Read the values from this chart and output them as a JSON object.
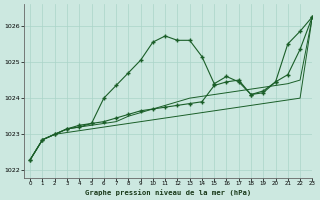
{
  "background_color": "#cce8e0",
  "grid_color": "#aad4c8",
  "line_color": "#1a5e28",
  "marker_color": "#1a5e28",
  "title": "Graphe pression niveau de la mer (hPa)",
  "xlim": [
    -0.5,
    23
  ],
  "ylim": [
    1021.8,
    1026.6
  ],
  "yticks": [
    1022,
    1023,
    1024,
    1025,
    1026
  ],
  "xticks": [
    0,
    1,
    2,
    3,
    4,
    5,
    6,
    7,
    8,
    9,
    10,
    11,
    12,
    13,
    14,
    15,
    16,
    17,
    18,
    19,
    20,
    21,
    22,
    23
  ],
  "s1": [
    1022.3,
    1022.85,
    1023.0,
    1023.15,
    1023.2,
    1023.3,
    1024.0,
    1024.35,
    1024.7,
    1025.05,
    1025.55,
    1025.72,
    1025.6,
    1025.6,
    1025.15,
    1024.4,
    1024.6,
    1024.45,
    1024.1,
    1024.15,
    1024.45,
    1025.5,
    1025.85,
    1026.25
  ],
  "s2": [
    1022.3,
    1022.85,
    1023.0,
    1023.15,
    1023.25,
    1023.3,
    1023.35,
    1023.45,
    1023.55,
    1023.65,
    1023.7,
    1023.75,
    1023.8,
    1023.85,
    1023.9,
    1024.35,
    1024.45,
    1024.5,
    1024.1,
    1024.2,
    1024.45,
    1024.65,
    1025.35,
    1026.25
  ],
  "s3": [
    1022.3,
    1022.85,
    1023.0,
    1023.15,
    1023.2,
    1023.25,
    1023.3,
    1023.35,
    1023.5,
    1023.6,
    1023.7,
    1023.8,
    1023.9,
    1024.0,
    1024.05,
    1024.1,
    1024.15,
    1024.2,
    1024.25,
    1024.3,
    1024.35,
    1024.4,
    1024.5,
    1026.25
  ],
  "s4": [
    1022.3,
    1022.85,
    1023.0,
    1023.05,
    1023.1,
    1023.15,
    1023.2,
    1023.25,
    1023.3,
    1023.35,
    1023.4,
    1023.45,
    1023.5,
    1023.55,
    1023.6,
    1023.65,
    1023.7,
    1023.75,
    1023.8,
    1023.85,
    1023.9,
    1023.95,
    1024.0,
    1026.25
  ]
}
